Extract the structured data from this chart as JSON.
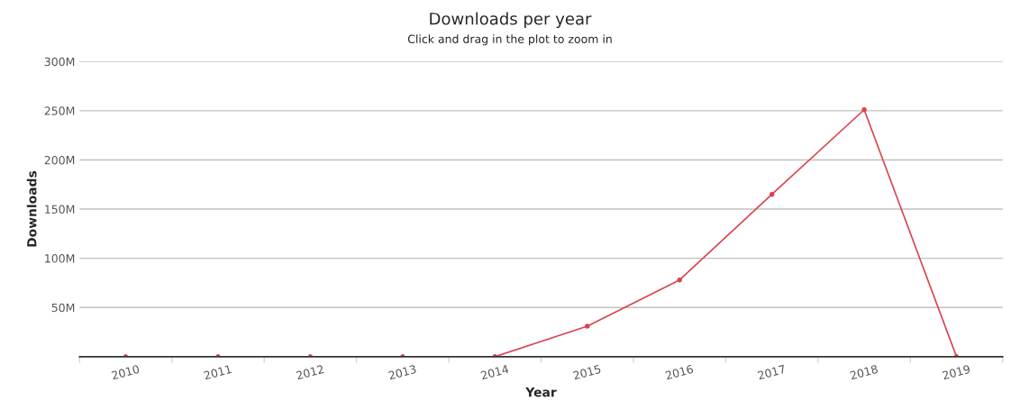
{
  "chart_data": {
    "type": "line",
    "title": "Downloads per year",
    "subtitle": "Click and drag in the plot to zoom in",
    "xlabel": "Year",
    "ylabel": "Downloads",
    "categories": [
      "2010",
      "2011",
      "2012",
      "2013",
      "2014",
      "2015",
      "2016",
      "2017",
      "2018",
      "2019"
    ],
    "series": [
      {
        "color": "#d9444f",
        "values": [
          0,
          0,
          0,
          0,
          0,
          31000000,
          78000000,
          165000000,
          251000000,
          0
        ]
      }
    ],
    "ylim": [
      0,
      300000000
    ],
    "yticks": [
      {
        "value": 50000000,
        "label": "50M"
      },
      {
        "value": 100000000,
        "label": "100M"
      },
      {
        "value": 150000000,
        "label": "150M"
      },
      {
        "value": 200000000,
        "label": "200M"
      },
      {
        "value": 250000000,
        "label": "250M"
      },
      {
        "value": 300000000,
        "label": "300M"
      }
    ],
    "grid": "y",
    "marker": "circle",
    "line_style": "solid"
  }
}
